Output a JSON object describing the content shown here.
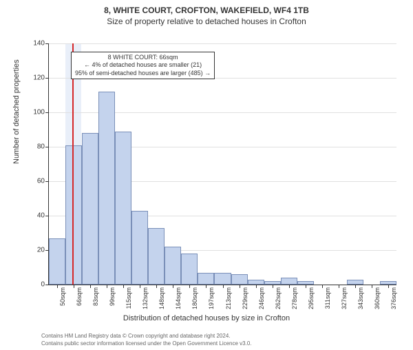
{
  "title_main": "8, WHITE COURT, CROFTON, WAKEFIELD, WF4 1TB",
  "title_sub": "Size of property relative to detached houses in Crofton",
  "ylabel": "Number of detached properties",
  "xlabel": "Distribution of detached houses by size in Crofton",
  "chart": {
    "type": "histogram",
    "ylim": [
      0,
      140
    ],
    "ytick_step": 20,
    "bar_fill": "#c4d3ed",
    "bar_border": "#7a8fb8",
    "grid_color": "#e0e0e0",
    "background_color": "#ffffff",
    "shaded_fill": "rgba(200,215,240,0.4)",
    "vline_color": "#d62728",
    "vline_x": 66,
    "x_range": [
      42,
      384
    ],
    "categories": [
      "50sqm",
      "66sqm",
      "83sqm",
      "99sqm",
      "115sqm",
      "132sqm",
      "148sqm",
      "164sqm",
      "180sqm",
      "197sqm",
      "213sqm",
      "229sqm",
      "246sqm",
      "262sqm",
      "278sqm",
      "295sqm",
      "311sqm",
      "327sqm",
      "343sqm",
      "360sqm",
      "376sqm"
    ],
    "values": [
      27,
      81,
      88,
      112,
      89,
      43,
      33,
      22,
      18,
      7,
      7,
      6,
      3,
      2,
      4,
      2,
      0,
      0,
      3,
      0,
      2
    ],
    "shaded_region": {
      "from": 58,
      "to": 74
    }
  },
  "annotation": {
    "line1": "8 WHITE COURT: 66sqm",
    "line2": "← 4% of detached houses are smaller (21)",
    "line3": "95% of semi-detached houses are larger (485) →"
  },
  "footer_line1": "Contains HM Land Registry data © Crown copyright and database right 2024.",
  "footer_line2": "Contains public sector information licensed under the Open Government Licence v3.0."
}
